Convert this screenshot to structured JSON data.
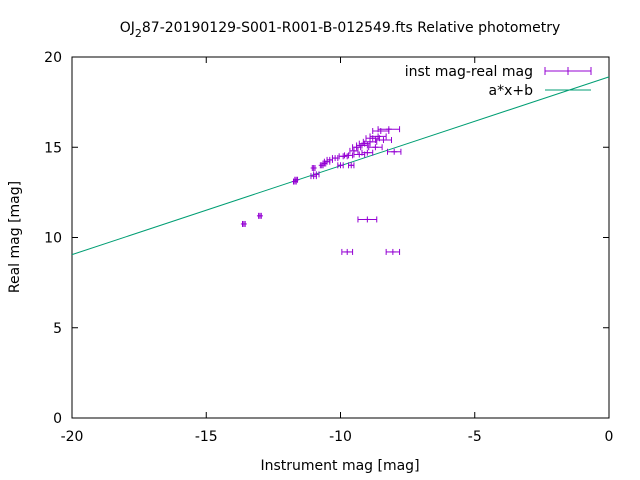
{
  "chart_data": {
    "type": "scatter",
    "title": "OJ 287-20190129-S001-R001-B-012549.fts Relative photometry",
    "title_main_before": "OJ",
    "title_sub": "2",
    "title_main_after": "87-20190129-S001-R001-B-012549.fts Relative photometry",
    "xlabel": "Instrument mag [mag]",
    "ylabel": "Real mag [mag]",
    "xlim": [
      -20,
      0
    ],
    "ylim": [
      0,
      20
    ],
    "x_ticks": [
      -20,
      -15,
      -10,
      -5,
      0
    ],
    "y_ticks": [
      0,
      5,
      10,
      15,
      20
    ],
    "grid": false,
    "legend_position": "top-right",
    "series": [
      {
        "name": "inst mag-real mag",
        "kind": "errorbar",
        "color": "#9400d3",
        "points": [
          {
            "x": -13.6,
            "y": 10.75,
            "xerr": 0.05
          },
          {
            "x": -13.0,
            "y": 11.2,
            "xerr": 0.05
          },
          {
            "x": -11.7,
            "y": 13.1,
            "xerr": 0.05
          },
          {
            "x": -11.65,
            "y": 13.2,
            "xerr": 0.05
          },
          {
            "x": -11.0,
            "y": 13.4,
            "xerr": 0.1
          },
          {
            "x": -10.9,
            "y": 13.5,
            "xerr": 0.1
          },
          {
            "x": -11.0,
            "y": 13.85,
            "xerr": 0.05
          },
          {
            "x": -10.7,
            "y": 14.0,
            "xerr": 0.05
          },
          {
            "x": -10.6,
            "y": 14.1,
            "xerr": 0.05
          },
          {
            "x": -10.5,
            "y": 14.2,
            "xerr": 0.1
          },
          {
            "x": -10.4,
            "y": 14.3,
            "xerr": 0.1
          },
          {
            "x": -10.2,
            "y": 14.4,
            "xerr": 0.1
          },
          {
            "x": -10.0,
            "y": 14.0,
            "xerr": 0.1
          },
          {
            "x": -9.9,
            "y": 14.5,
            "xerr": 0.15
          },
          {
            "x": -9.7,
            "y": 14.55,
            "xerr": 0.15
          },
          {
            "x": -9.6,
            "y": 14.0,
            "xerr": 0.1
          },
          {
            "x": -9.5,
            "y": 14.8,
            "xerr": 0.15
          },
          {
            "x": -9.4,
            "y": 15.0,
            "xerr": 0.15
          },
          {
            "x": -9.3,
            "y": 14.6,
            "xerr": 0.2
          },
          {
            "x": -9.2,
            "y": 15.1,
            "xerr": 0.2
          },
          {
            "x": -9.1,
            "y": 15.2,
            "xerr": 0.2
          },
          {
            "x": -9.0,
            "y": 14.7,
            "xerr": 0.2
          },
          {
            "x": -8.9,
            "y": 15.3,
            "xerr": 0.25
          },
          {
            "x": -8.8,
            "y": 15.5,
            "xerr": 0.25
          },
          {
            "x": -8.7,
            "y": 15.0,
            "xerr": 0.25
          },
          {
            "x": -8.6,
            "y": 15.6,
            "xerr": 0.3
          },
          {
            "x": -8.5,
            "y": 15.9,
            "xerr": 0.3
          },
          {
            "x": -8.4,
            "y": 15.4,
            "xerr": 0.3
          },
          {
            "x": -8.2,
            "y": 16.0,
            "xerr": 0.4
          },
          {
            "x": -8.0,
            "y": 14.75,
            "xerr": 0.25
          },
          {
            "x": -9.0,
            "y": 11.0,
            "xerr": 0.35
          },
          {
            "x": -9.75,
            "y": 9.2,
            "xerr": 0.2
          },
          {
            "x": -8.05,
            "y": 9.2,
            "xerr": 0.25
          }
        ]
      },
      {
        "name": "a*x+b",
        "kind": "line",
        "color": "#009e73",
        "slope": 0.4925,
        "intercept": 18.9,
        "x_range": [
          -20,
          0
        ]
      }
    ]
  }
}
